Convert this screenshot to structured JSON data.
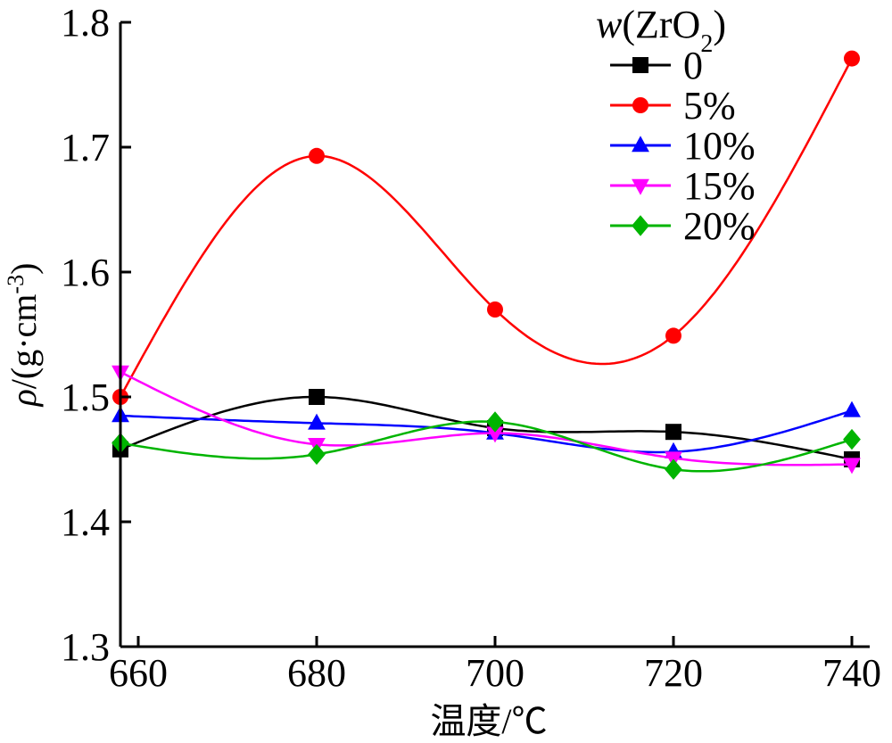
{
  "chart_data": {
    "type": "line",
    "xlabel": "温度/℃",
    "ylabel": {
      "symbol": "ρ",
      "rest": "/(g·cm",
      "sup": "-3",
      "close": ")"
    },
    "x": [
      658,
      680,
      700,
      720,
      740
    ],
    "xlim": [
      658,
      742
    ],
    "ylim": [
      1.3,
      1.8
    ],
    "xticks": [
      "660",
      "680",
      "700",
      "720",
      "740"
    ],
    "yticks": [
      "1.3",
      "1.4",
      "1.5",
      "1.6",
      "1.7",
      "1.8"
    ],
    "legend": {
      "title_var": "w",
      "title_main": "(ZrO",
      "title_sub": "2",
      "title_close": ")",
      "position": "top-right"
    },
    "series": [
      {
        "name": "0",
        "color": "#000000",
        "marker": "square",
        "values": [
          1.458,
          1.5,
          1.475,
          1.472,
          1.45
        ]
      },
      {
        "name": "5%",
        "color": "#ff0000",
        "marker": "circle",
        "values": [
          1.5,
          1.693,
          1.57,
          1.549,
          1.771
        ]
      },
      {
        "name": "10%",
        "color": "#0000ff",
        "marker": "triangle-up",
        "values": [
          1.485,
          1.479,
          1.471,
          1.456,
          1.489
        ]
      },
      {
        "name": "15%",
        "color": "#ff00ff",
        "marker": "triangle-down",
        "values": [
          1.52,
          1.462,
          1.471,
          1.451,
          1.446
        ]
      },
      {
        "name": "20%",
        "color": "#00b400",
        "marker": "diamond",
        "values": [
          1.463,
          1.454,
          1.48,
          1.442,
          1.466
        ]
      }
    ]
  }
}
